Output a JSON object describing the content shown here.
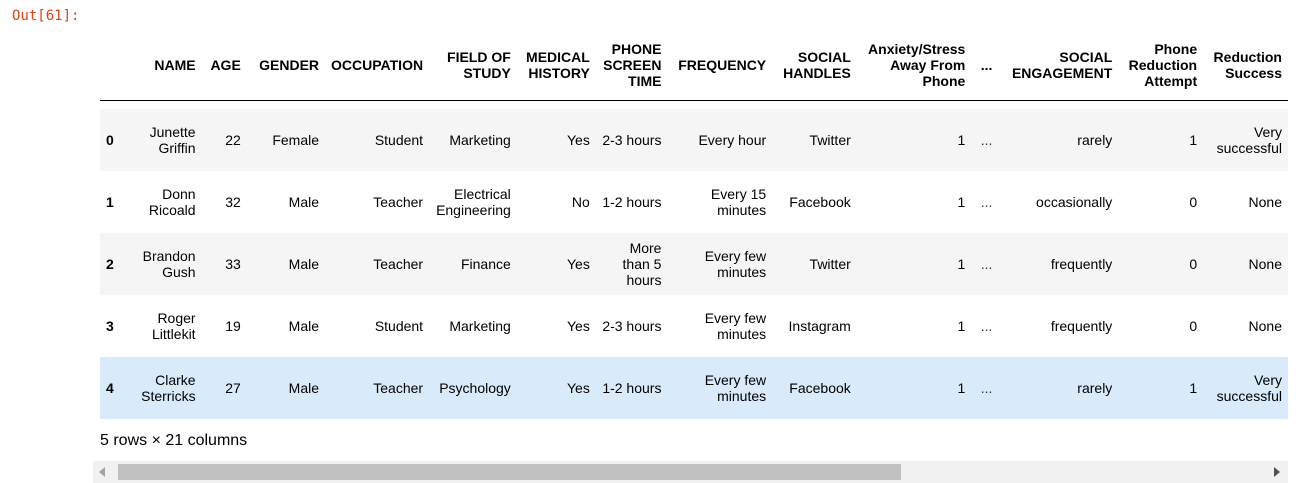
{
  "cell": {
    "prompt": "Out[61]:"
  },
  "table": {
    "columns": [
      "",
      "NAME",
      "AGE",
      "GENDER",
      "OCCUPATION",
      "FIELD OF STUDY",
      "MEDICAL HISTORY",
      "PHONE SCREEN TIME",
      "FREQUENCY",
      "SOCIAL HANDLES",
      "Anxiety/Stress Away From Phone",
      "...",
      "SOCIAL ENGAGEMENT",
      "Phone Reduction Attempt",
      "Reduction Success"
    ],
    "rows": [
      [
        "0",
        "Junette Griffin",
        "22",
        "Female",
        "Student",
        "Marketing",
        "Yes",
        "2-3 hours",
        "Every hour",
        "Twitter",
        "1",
        "...",
        "rarely",
        "1",
        "Very successful"
      ],
      [
        "1",
        "Donn Ricoald",
        "32",
        "Male",
        "Teacher",
        "Electrical Engineering",
        "No",
        "1-2 hours",
        "Every 15 minutes",
        "Facebook",
        "1",
        "...",
        "occasionally",
        "0",
        "None"
      ],
      [
        "2",
        "Brandon Gush",
        "33",
        "Male",
        "Teacher",
        "Finance",
        "Yes",
        "More than 5 hours",
        "Every few minutes",
        "Twitter",
        "1",
        "...",
        "frequently",
        "0",
        "None"
      ],
      [
        "3",
        "Roger Littlekit",
        "19",
        "Male",
        "Student",
        "Marketing",
        "Yes",
        "2-3 hours",
        "Every few minutes",
        "Instagram",
        "1",
        "...",
        "frequently",
        "0",
        "None"
      ],
      [
        "4",
        "Clarke Sterricks",
        "27",
        "Male",
        "Teacher",
        "Psychology",
        "Yes",
        "1-2 hours",
        "Every few minutes",
        "Facebook",
        "1",
        "...",
        "rarely",
        "1",
        "Very successful"
      ]
    ],
    "footer": "5 rows × 21 columns"
  },
  "colors": {
    "prompt": "#d84315",
    "row_stripe": "#f5f5f5",
    "row_hover": "#d9eafa"
  }
}
